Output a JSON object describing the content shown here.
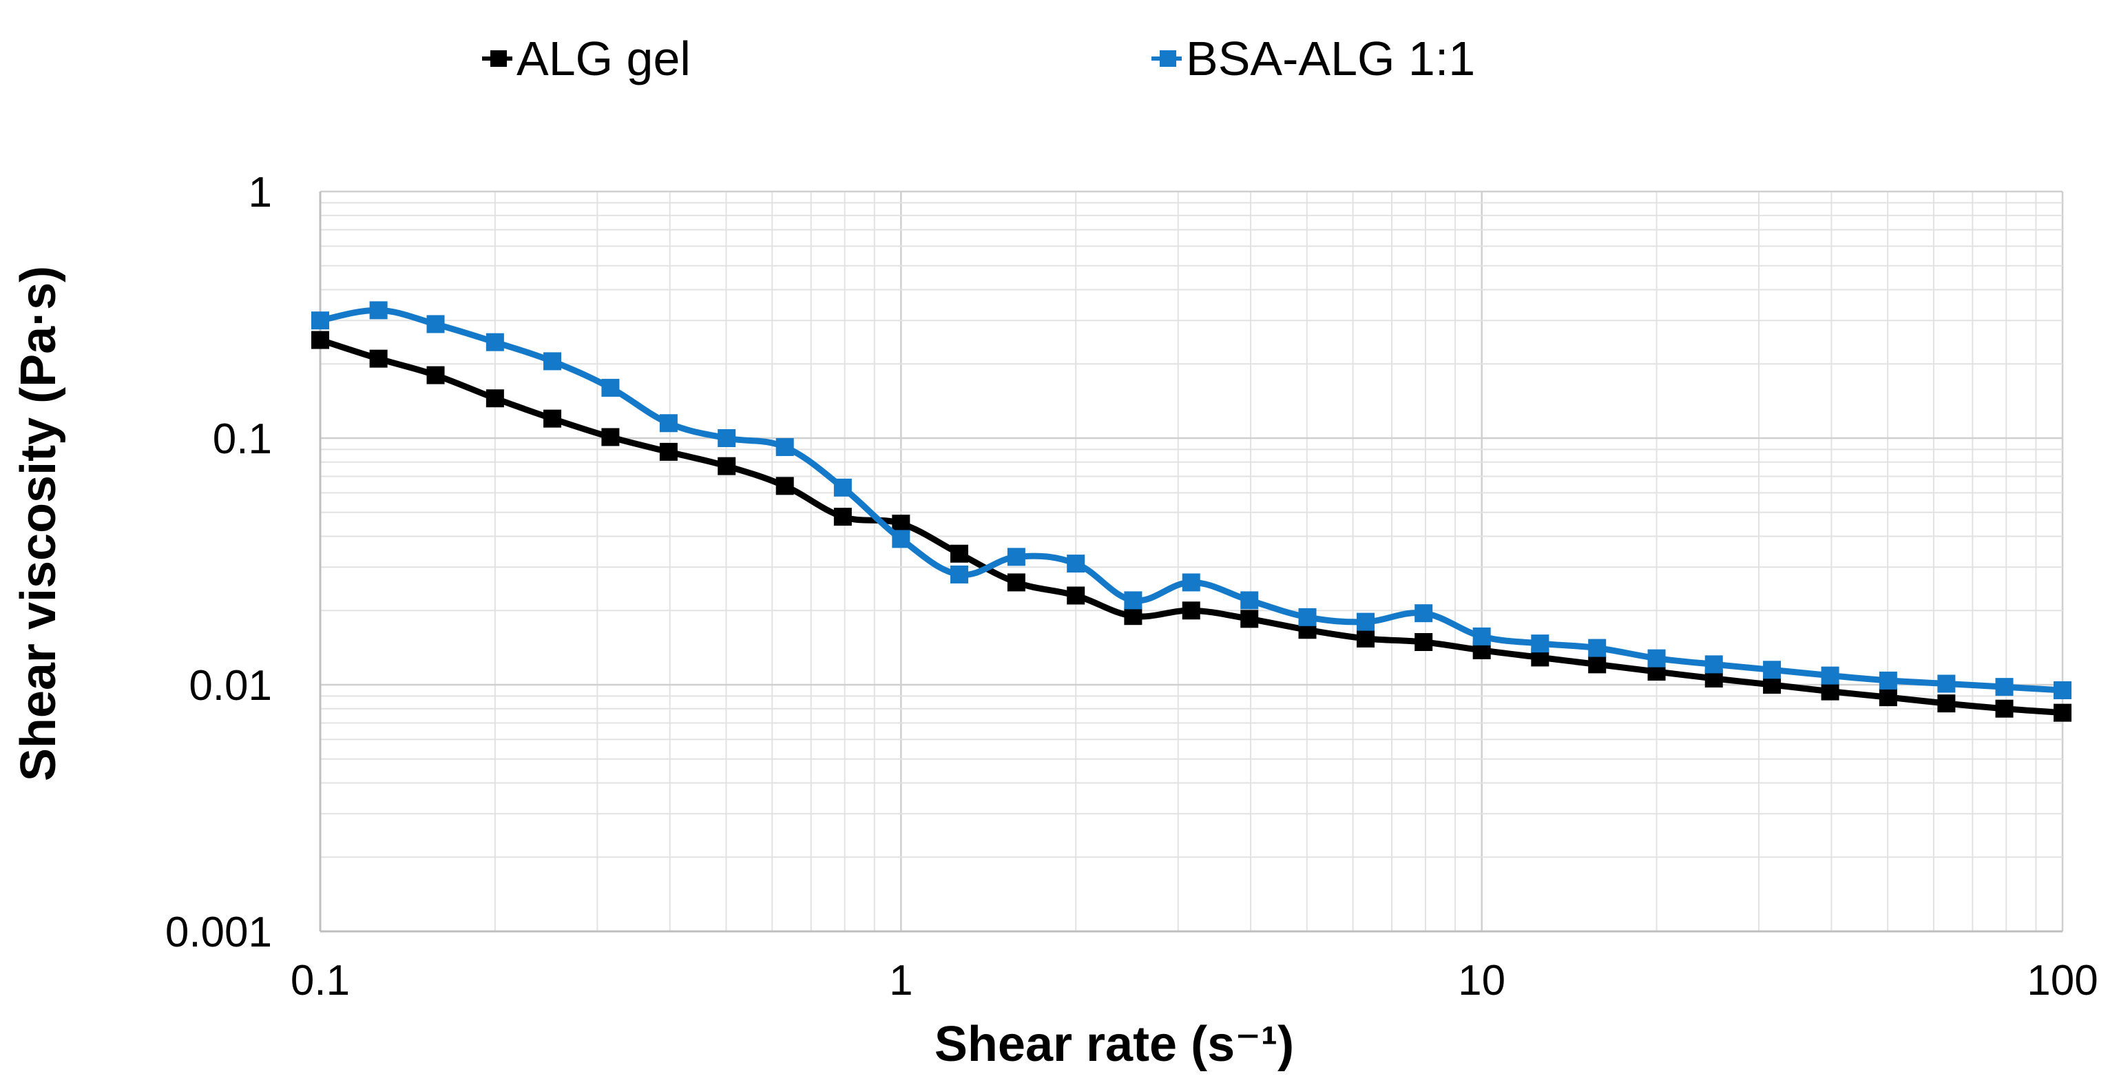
{
  "chart_data": {
    "type": "line",
    "title": "",
    "xlabel": "Shear rate (s⁻¹)",
    "ylabel": "Shear viscosity (Pa·s)",
    "x_scale": "log",
    "y_scale": "log",
    "xlim": [
      0.1,
      100
    ],
    "ylim": [
      0.001,
      1
    ],
    "x_ticks": [
      "0.1",
      "1",
      "10",
      "100"
    ],
    "y_ticks": [
      "0.001",
      "0.01",
      "0.1",
      "1"
    ],
    "grid": true,
    "legend_position": "top",
    "x": [
      0.1,
      0.126,
      0.158,
      0.2,
      0.251,
      0.316,
      0.398,
      0.501,
      0.631,
      0.794,
      1,
      1.26,
      1.58,
      2,
      2.51,
      3.16,
      3.98,
      5.01,
      6.31,
      7.94,
      10,
      12.6,
      15.8,
      20,
      25.1,
      31.6,
      39.8,
      50.1,
      63.1,
      79.4,
      100
    ],
    "series": [
      {
        "name": "ALG gel",
        "color": "#000000",
        "marker": "square",
        "values": [
          0.25,
          0.21,
          0.18,
          0.145,
          0.12,
          0.101,
          0.088,
          0.077,
          0.064,
          0.048,
          0.045,
          0.034,
          0.026,
          0.023,
          0.019,
          0.02,
          0.0185,
          0.0167,
          0.0154,
          0.0149,
          0.0138,
          0.0129,
          0.0121,
          0.0113,
          0.0106,
          0.01,
          0.0094,
          0.0089,
          0.0084,
          0.008,
          0.0077
        ]
      },
      {
        "name": "BSA-ALG 1:1",
        "color": "#1479c9",
        "marker": "square",
        "values": [
          0.3,
          0.33,
          0.29,
          0.245,
          0.205,
          0.16,
          0.115,
          0.1,
          0.092,
          0.063,
          0.039,
          0.028,
          0.033,
          0.031,
          0.022,
          0.026,
          0.022,
          0.0188,
          0.018,
          0.0195,
          0.0157,
          0.0147,
          0.0141,
          0.0128,
          0.0121,
          0.0115,
          0.0109,
          0.0104,
          0.0101,
          0.0098,
          0.0095
        ]
      }
    ]
  }
}
